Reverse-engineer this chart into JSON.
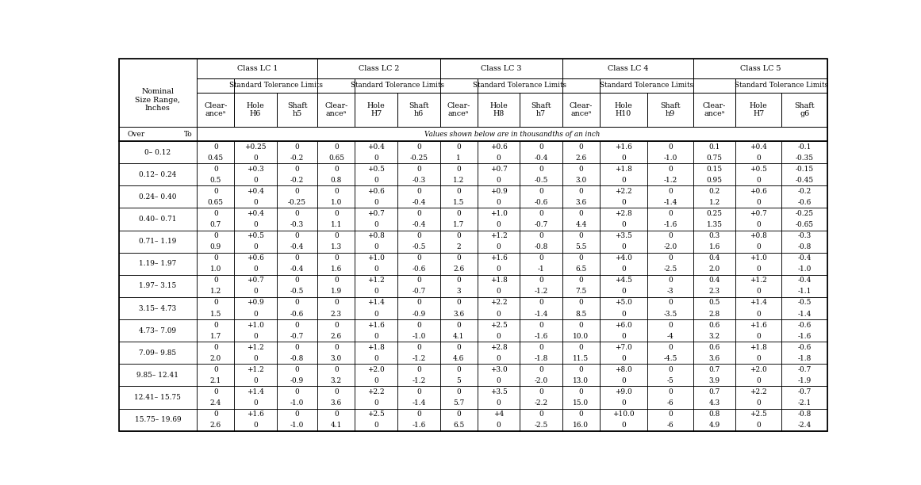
{
  "bg_color": "#ffffff",
  "border_color": "#000000",
  "text_color": "#000000",
  "size_ranges": [
    "0– 0.12",
    "0.12– 0.24",
    "0.24– 0.40",
    "0.40– 0.71",
    "0.71– 1.19",
    "1.19– 1.97",
    "1.97– 3.15",
    "3.15– 4.73",
    "4.73– 7.09",
    "7.09– 9.85",
    "9.85– 12.41",
    "12.41– 15.75",
    "15.75– 19.69"
  ],
  "lc_classes": [
    "Class LC 1",
    "Class LC 2",
    "Class LC 3",
    "Class LC 4",
    "Class LC 5"
  ],
  "col_subheaders": [
    [
      "Clear-\nanceᵃ",
      "Hole\nH6",
      "Shaft\nh5"
    ],
    [
      "Clear-\nanceᵃ",
      "Hole\nH7",
      "Shaft\nh6"
    ],
    [
      "Clear-\nanceᵃ",
      "Hole\nH8",
      "Shaft\nh7"
    ],
    [
      "Clear-\nanceᵃ",
      "Hole\nH10",
      "Shaft\nh9"
    ],
    [
      "Clear-\nanceᵃ",
      "Hole\nH7",
      "Shaft\ng6"
    ]
  ],
  "data": [
    [
      [
        "0",
        "0.45"
      ],
      [
        "+0.25",
        "0"
      ],
      [
        "0",
        "-0.2"
      ],
      [
        "0",
        "0.65"
      ],
      [
        "+0.4",
        "0"
      ],
      [
        "0",
        "-0.25"
      ],
      [
        "0",
        "1"
      ],
      [
        "+0.6",
        "0"
      ],
      [
        "0",
        "-0.4"
      ],
      [
        "0",
        "2.6"
      ],
      [
        "+1.6",
        "0"
      ],
      [
        "0",
        "-1.0"
      ],
      [
        "0.1",
        "0.75"
      ],
      [
        "+0.4",
        "0"
      ],
      [
        "-0.1",
        "-0.35"
      ]
    ],
    [
      [
        "0",
        "0.5"
      ],
      [
        "+0.3",
        "0"
      ],
      [
        "0",
        "-0.2"
      ],
      [
        "0",
        "0.8"
      ],
      [
        "+0.5",
        "0"
      ],
      [
        "0",
        "-0.3"
      ],
      [
        "0",
        "1.2"
      ],
      [
        "+0.7",
        "0"
      ],
      [
        "0",
        "-0.5"
      ],
      [
        "0",
        "3.0"
      ],
      [
        "+1.8",
        "0"
      ],
      [
        "0",
        "-1.2"
      ],
      [
        "0.15",
        "0.95"
      ],
      [
        "+0.5",
        "0"
      ],
      [
        "-0.15",
        "-0.45"
      ]
    ],
    [
      [
        "0",
        "0.65"
      ],
      [
        "+0.4",
        "0"
      ],
      [
        "0",
        "-0.25"
      ],
      [
        "0",
        "1.0"
      ],
      [
        "+0.6",
        "0"
      ],
      [
        "0",
        "-0.4"
      ],
      [
        "0",
        "1.5"
      ],
      [
        "+0.9",
        "0"
      ],
      [
        "0",
        "-0.6"
      ],
      [
        "0",
        "3.6"
      ],
      [
        "+2.2",
        "0"
      ],
      [
        "0",
        "-1.4"
      ],
      [
        "0.2",
        "1.2"
      ],
      [
        "+0.6",
        "0"
      ],
      [
        "-0.2",
        "-0.6"
      ]
    ],
    [
      [
        "0",
        "0.7"
      ],
      [
        "+0.4",
        "0"
      ],
      [
        "0",
        "-0.3"
      ],
      [
        "0",
        "1.1"
      ],
      [
        "+0.7",
        "0"
      ],
      [
        "0",
        "-0.4"
      ],
      [
        "0",
        "1.7"
      ],
      [
        "+1.0",
        "0"
      ],
      [
        "0",
        "-0.7"
      ],
      [
        "0",
        "4.4"
      ],
      [
        "+2.8",
        "0"
      ],
      [
        "0",
        "-1.6"
      ],
      [
        "0.25",
        "1.35"
      ],
      [
        "+0.7",
        "0"
      ],
      [
        "-0.25",
        "-0.65"
      ]
    ],
    [
      [
        "0",
        "0.9"
      ],
      [
        "+0.5",
        "0"
      ],
      [
        "0",
        "-0.4"
      ],
      [
        "0",
        "1.3"
      ],
      [
        "+0.8",
        "0"
      ],
      [
        "0",
        "-0.5"
      ],
      [
        "0",
        "2"
      ],
      [
        "+1.2",
        "0"
      ],
      [
        "0",
        "-0.8"
      ],
      [
        "0",
        "5.5"
      ],
      [
        "+3.5",
        "0"
      ],
      [
        "0",
        "-2.0"
      ],
      [
        "0.3",
        "1.6"
      ],
      [
        "+0.8",
        "0"
      ],
      [
        "-0.3",
        "-0.8"
      ]
    ],
    [
      [
        "0",
        "1.0"
      ],
      [
        "+0.6",
        "0"
      ],
      [
        "0",
        "-0.4"
      ],
      [
        "0",
        "1.6"
      ],
      [
        "+1.0",
        "0"
      ],
      [
        "0",
        "-0.6"
      ],
      [
        "0",
        "2.6"
      ],
      [
        "+1.6",
        "0"
      ],
      [
        "0",
        "-1"
      ],
      [
        "0",
        "6.5"
      ],
      [
        "+4.0",
        "0"
      ],
      [
        "0",
        "-2.5"
      ],
      [
        "0.4",
        "2.0"
      ],
      [
        "+1.0",
        "0"
      ],
      [
        "-0.4",
        "-1.0"
      ]
    ],
    [
      [
        "0",
        "1.2"
      ],
      [
        "+0.7",
        "0"
      ],
      [
        "0",
        "-0.5"
      ],
      [
        "0",
        "1.9"
      ],
      [
        "+1.2",
        "0"
      ],
      [
        "0",
        "-0.7"
      ],
      [
        "0",
        "3"
      ],
      [
        "+1.8",
        "0"
      ],
      [
        "0",
        "-1.2"
      ],
      [
        "0",
        "7.5"
      ],
      [
        "+4.5",
        "0"
      ],
      [
        "0",
        "-3"
      ],
      [
        "0.4",
        "2.3"
      ],
      [
        "+1.2",
        "0"
      ],
      [
        "-0.4",
        "-1.1"
      ]
    ],
    [
      [
        "0",
        "1.5"
      ],
      [
        "+0.9",
        "0"
      ],
      [
        "0",
        "-0.6"
      ],
      [
        "0",
        "2.3"
      ],
      [
        "+1.4",
        "0"
      ],
      [
        "0",
        "-0.9"
      ],
      [
        "0",
        "3.6"
      ],
      [
        "+2.2",
        "0"
      ],
      [
        "0",
        "-1.4"
      ],
      [
        "0",
        "8.5"
      ],
      [
        "+5.0",
        "0"
      ],
      [
        "0",
        "-3.5"
      ],
      [
        "0.5",
        "2.8"
      ],
      [
        "+1.4",
        "0"
      ],
      [
        "-0.5",
        "-1.4"
      ]
    ],
    [
      [
        "0",
        "1.7"
      ],
      [
        "+1.0",
        "0"
      ],
      [
        "0",
        "-0.7"
      ],
      [
        "0",
        "2.6"
      ],
      [
        "+1.6",
        "0"
      ],
      [
        "0",
        "-1.0"
      ],
      [
        "0",
        "4.1"
      ],
      [
        "+2.5",
        "0"
      ],
      [
        "0",
        "-1.6"
      ],
      [
        "0",
        "10.0"
      ],
      [
        "+6.0",
        "0"
      ],
      [
        "0",
        "-4"
      ],
      [
        "0.6",
        "3.2"
      ],
      [
        "+1.6",
        "0"
      ],
      [
        "-0.6",
        "-1.6"
      ]
    ],
    [
      [
        "0",
        "2.0"
      ],
      [
        "+1.2",
        "0"
      ],
      [
        "0",
        "-0.8"
      ],
      [
        "0",
        "3.0"
      ],
      [
        "+1.8",
        "0"
      ],
      [
        "0",
        "-1.2"
      ],
      [
        "0",
        "4.6"
      ],
      [
        "+2.8",
        "0"
      ],
      [
        "0",
        "-1.8"
      ],
      [
        "0",
        "11.5"
      ],
      [
        "+7.0",
        "0"
      ],
      [
        "0",
        "-4.5"
      ],
      [
        "0.6",
        "3.6"
      ],
      [
        "+1.8",
        "0"
      ],
      [
        "-0.6",
        "-1.8"
      ]
    ],
    [
      [
        "0",
        "2.1"
      ],
      [
        "+1.2",
        "0"
      ],
      [
        "0",
        "-0.9"
      ],
      [
        "0",
        "3.2"
      ],
      [
        "+2.0",
        "0"
      ],
      [
        "0",
        "-1.2"
      ],
      [
        "0",
        "5"
      ],
      [
        "+3.0",
        "0"
      ],
      [
        "0",
        "-2.0"
      ],
      [
        "0",
        "13.0"
      ],
      [
        "+8.0",
        "0"
      ],
      [
        "0",
        "-5"
      ],
      [
        "0.7",
        "3.9"
      ],
      [
        "+2.0",
        "0"
      ],
      [
        "-0.7",
        "-1.9"
      ]
    ],
    [
      [
        "0",
        "2.4"
      ],
      [
        "+1.4",
        "0"
      ],
      [
        "0",
        "-1.0"
      ],
      [
        "0",
        "3.6"
      ],
      [
        "+2.2",
        "0"
      ],
      [
        "0",
        "-1.4"
      ],
      [
        "0",
        "5.7"
      ],
      [
        "+3.5",
        "0"
      ],
      [
        "0",
        "-2.2"
      ],
      [
        "0",
        "15.0"
      ],
      [
        "+9.0",
        "0"
      ],
      [
        "0",
        "-6"
      ],
      [
        "0.7",
        "4.3"
      ],
      [
        "+2.2",
        "0"
      ],
      [
        "-0.7",
        "-2.1"
      ]
    ],
    [
      [
        "0",
        "2.6"
      ],
      [
        "+1.6",
        "0"
      ],
      [
        "0",
        "-1.0"
      ],
      [
        "0",
        "4.1"
      ],
      [
        "+2.5",
        "0"
      ],
      [
        "0",
        "-1.6"
      ],
      [
        "0",
        "6.5"
      ],
      [
        "+4",
        "0"
      ],
      [
        "0",
        "-2.5"
      ],
      [
        "0",
        "16.0"
      ],
      [
        "+10.0",
        "0"
      ],
      [
        "0",
        "-6"
      ],
      [
        "0.8",
        "4.9"
      ],
      [
        "+2.5",
        "0"
      ],
      [
        "-0.8",
        "-2.4"
      ]
    ]
  ]
}
